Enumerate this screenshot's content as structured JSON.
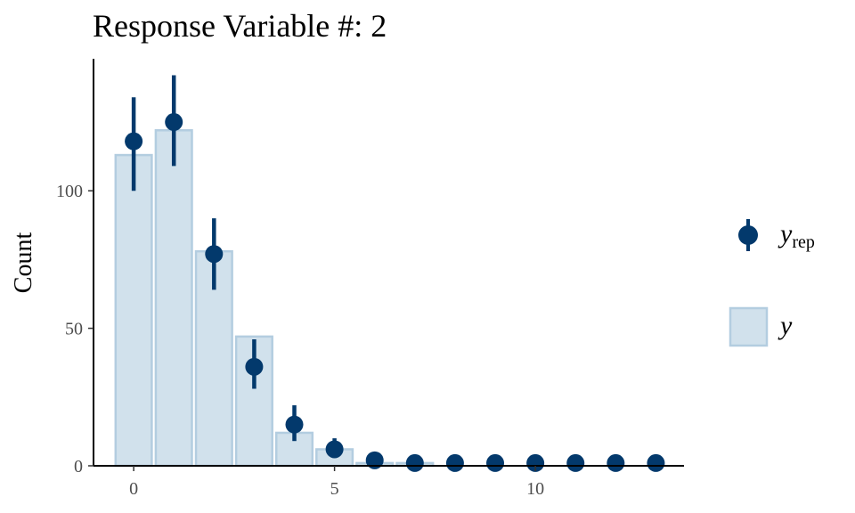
{
  "chart_data": {
    "type": "bar",
    "title": "Response Variable #: 2",
    "xlabel": "",
    "ylabel": "Count",
    "xlim": [
      -1,
      13.7
    ],
    "ylim": [
      0,
      148
    ],
    "x_ticks": [
      0,
      5,
      10
    ],
    "y_ticks": [
      0,
      50,
      100
    ],
    "grid": false,
    "legend_position": "right",
    "series": [
      {
        "name": "y",
        "kind": "bar",
        "color": "#d1e1ec",
        "edge_color": "#b3cde0",
        "x": [
          0,
          1,
          2,
          3,
          4,
          5,
          6,
          7,
          8,
          9,
          10,
          11,
          12,
          13
        ],
        "values": [
          113,
          122,
          78,
          47,
          12,
          6,
          1,
          1,
          0,
          0,
          0,
          0,
          0,
          0
        ]
      },
      {
        "name": "y_rep",
        "kind": "pointrange",
        "color": "#03396c",
        "x": [
          0,
          1,
          2,
          3,
          4,
          5,
          6,
          7,
          8,
          9,
          10,
          11,
          12,
          13
        ],
        "values": [
          118,
          125,
          77,
          36,
          15,
          6,
          2,
          1,
          1,
          1,
          1,
          1,
          1,
          1
        ],
        "lower": [
          100,
          109,
          64,
          28,
          9,
          3,
          0,
          0,
          0,
          0,
          0,
          0,
          0,
          0
        ],
        "upper": [
          134,
          142,
          90,
          46,
          22,
          10,
          4,
          2,
          2,
          2,
          2,
          2,
          2,
          2
        ]
      }
    ],
    "legend": [
      {
        "symbol": "y",
        "subscript": "rep",
        "series": "y_rep"
      },
      {
        "symbol": "y",
        "subscript": "",
        "series": "y"
      }
    ]
  }
}
